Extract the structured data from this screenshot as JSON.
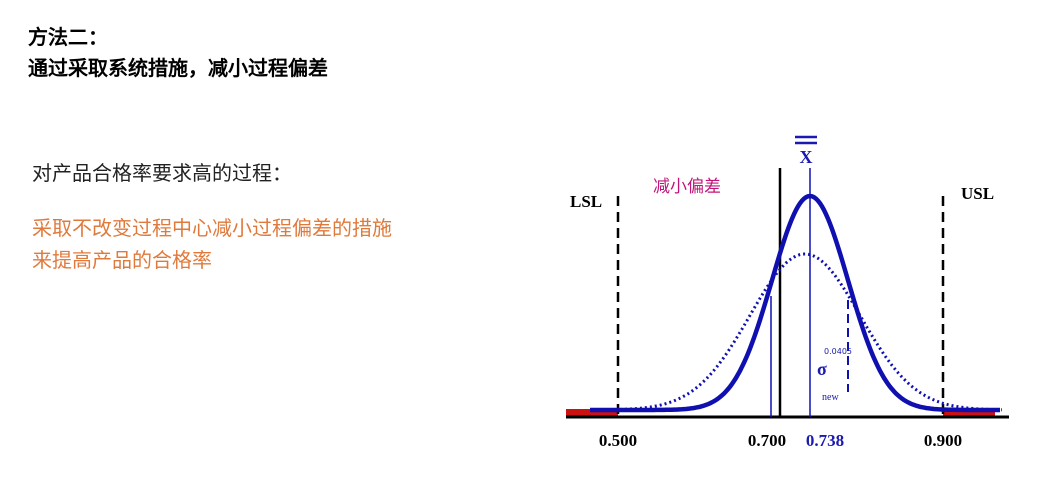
{
  "heading": {
    "line1": "方法二：",
    "line2": "通过采取系统措施，减小过程偏差"
  },
  "intro": "对产品合格率要求高的过程：",
  "method": {
    "line1": "采取不改变过程中心减小过程偏差的措施",
    "line2": "来提高产品的合格率"
  },
  "diagram": {
    "lsl_label": "LSL",
    "usl_label": "USL",
    "reduce_label": "减小偏差",
    "xbar_label": "X",
    "sigma_symbol": "σ",
    "sigma_value": "0.0405",
    "sigma_sub": "new",
    "ticks": [
      "0.500",
      "0.700",
      "0.738",
      "0.900"
    ],
    "colors": {
      "curve": "#1010b0",
      "tail": "#cc1111",
      "mean_label": "#1a1ab0",
      "reduce_label": "#c0157a"
    }
  }
}
